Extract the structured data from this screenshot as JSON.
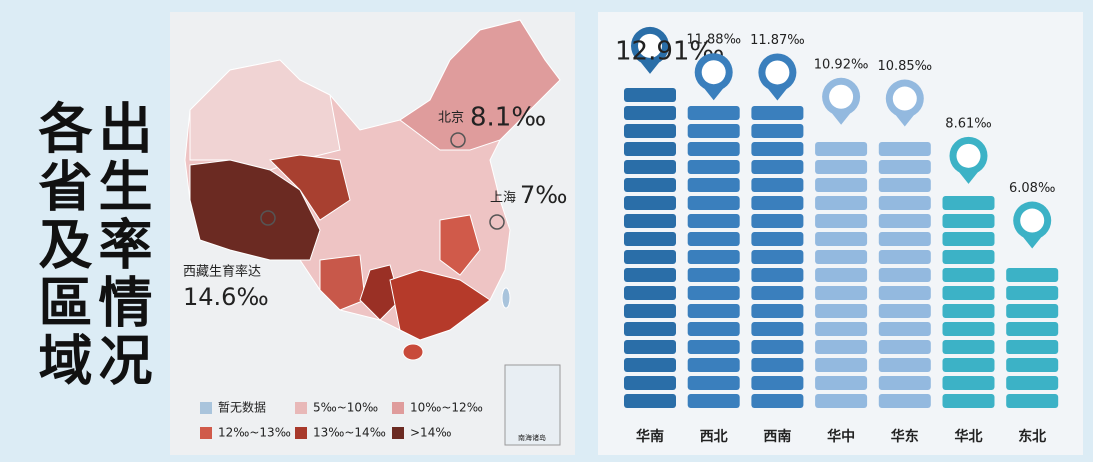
{
  "title_lines": [
    "各省及區域",
    "出生率情况"
  ],
  "map": {
    "annotations": [
      {
        "place": "北京",
        "rate": "8.1‰"
      },
      {
        "place": "上海",
        "rate": "7‰"
      },
      {
        "place": "西藏生育率达",
        "rate": "14.6‰"
      }
    ],
    "legend": [
      {
        "label": "暂无数据",
        "color": "#a9c4dc"
      },
      {
        "label": "5‰~10‰",
        "color": "#e8b8b8"
      },
      {
        "label": "10‰~12‰",
        "color": "#df9c9c"
      },
      {
        "label": "12‰~13‰",
        "color": "#d05a4a"
      },
      {
        "label": "13‰~14‰",
        "color": "#a8392b"
      },
      {
        "label": ">14‰",
        "color": "#6b2a22"
      }
    ],
    "inset_label": "南海诸岛"
  },
  "chart_data": {
    "type": "bar",
    "categories": [
      "华南",
      "西北",
      "西南",
      "华中",
      "华东",
      "华北",
      "东北"
    ],
    "values": [
      12.91,
      11.88,
      11.87,
      10.92,
      10.85,
      8.61,
      6.08
    ],
    "value_labels": [
      "12.91‰",
      "11.88‰",
      "11.87‰",
      "10.92‰",
      "10.85‰",
      "8.61‰",
      "6.08‰"
    ],
    "colors": [
      "#2a6ea8",
      "#3a7fbd",
      "#3a7fbd",
      "#93b9df",
      "#93b9df",
      "#3cb2c6",
      "#3cb2c6"
    ],
    "ylim": [
      0,
      14
    ]
  }
}
